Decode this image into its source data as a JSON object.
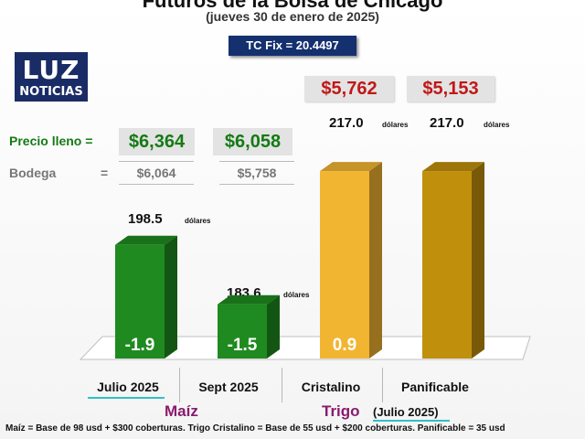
{
  "title": "Futuros de la Bolsa de Chicago",
  "subtitle": "(jueves 30 de enero de 2025)",
  "tc_fix": "TC Fix = 20.4497",
  "logo": {
    "mark": "LUZ",
    "word": "NOTICIAS"
  },
  "labels": {
    "precio_lleno": "Precio lleno =",
    "bodega": "Bodega",
    "bodega_eq": "=",
    "unit": "dólares"
  },
  "colors": {
    "maiz": "#1f8a1f",
    "trigo_cristalino": "#f2b531",
    "trigo_panificable": "#c08f0c",
    "price_red": "#c01818",
    "price_green": "#157a15"
  },
  "chart_data": {
    "type": "bar",
    "title": "Futuros de la Bolsa de Chicago",
    "subtitle": "(jueves 30 de enero de 2025)",
    "categories": [
      "Julio 2025",
      "Sept 2025",
      "Cristalino",
      "Panificable"
    ],
    "values": [
      198.5,
      183.6,
      217.0,
      217.0
    ],
    "value_labels": [
      "198.5",
      "183.6",
      "217.0",
      "217.0"
    ],
    "changes": [
      "-1.9",
      "-1.5",
      "0.9",
      ""
    ],
    "precio_lleno": [
      "$6,364",
      "$6,058",
      "$5,762",
      "$5,153"
    ],
    "bodega": [
      "$6,064",
      "$5,758",
      "",
      ""
    ],
    "groups": [
      {
        "name": "Maíz",
        "categories": [
          "Julio 2025",
          "Sept 2025"
        ]
      },
      {
        "name": "Trigo",
        "sub": "(Julio 2025)",
        "categories": [
          "Cristalino",
          "Panificable"
        ]
      }
    ],
    "ylim": [
      170,
      220
    ]
  },
  "footnote": "Maíz = Base de 98 usd + $300 coberturas. Trigo Cristalino = Base de 55 usd + $200 coberturas. Panificable = 35 usd"
}
